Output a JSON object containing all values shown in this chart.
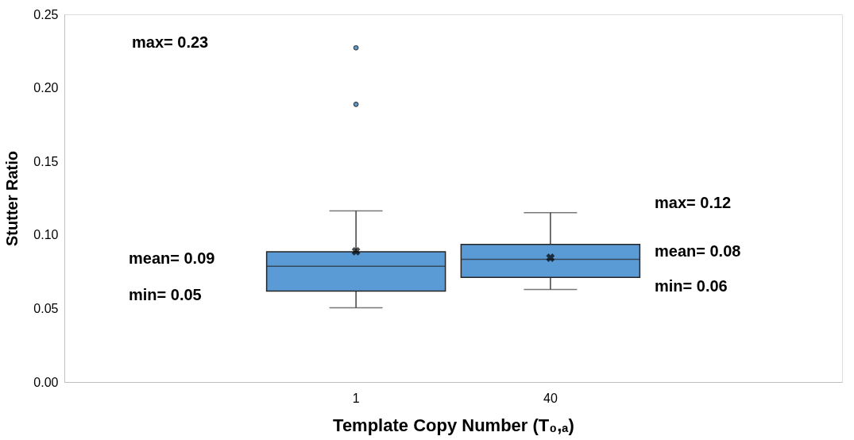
{
  "chart_data": {
    "type": "box",
    "xlabel": "Template Copy Number (T₀,ₐ)",
    "ylabel": "Stutter Ratio",
    "categories": [
      "1",
      "40"
    ],
    "series": [
      {
        "color": "#5b9bd5",
        "boxes": [
          {
            "low": 0.0505,
            "q1": 0.0618,
            "median": 0.0787,
            "q3": 0.0885,
            "high": 0.1163,
            "mean": 0.0889,
            "outliers": [
              0.2272,
              0.1888
            ]
          },
          {
            "low": 0.0629,
            "q1": 0.0712,
            "median": 0.0834,
            "q3": 0.0936,
            "high": 0.1152,
            "mean": 0.0845
          }
        ]
      }
    ],
    "ylim": [
      0,
      0.25
    ],
    "yticks": [
      {
        "value": 0,
        "label": "0.00"
      },
      {
        "value": 0.05,
        "label": "0.05"
      },
      {
        "value": 0.1,
        "label": "0.10"
      },
      {
        "value": 0.15,
        "label": "0.15"
      },
      {
        "value": 0.2,
        "label": "0.20"
      },
      {
        "value": 0.25,
        "label": "0.25"
      }
    ],
    "grid": false,
    "annotations": [
      "max= 0.23",
      "mean= 0.09",
      "min= 0.05",
      "max= 0.12",
      "mean= 0.08",
      "min= 0.06"
    ]
  }
}
